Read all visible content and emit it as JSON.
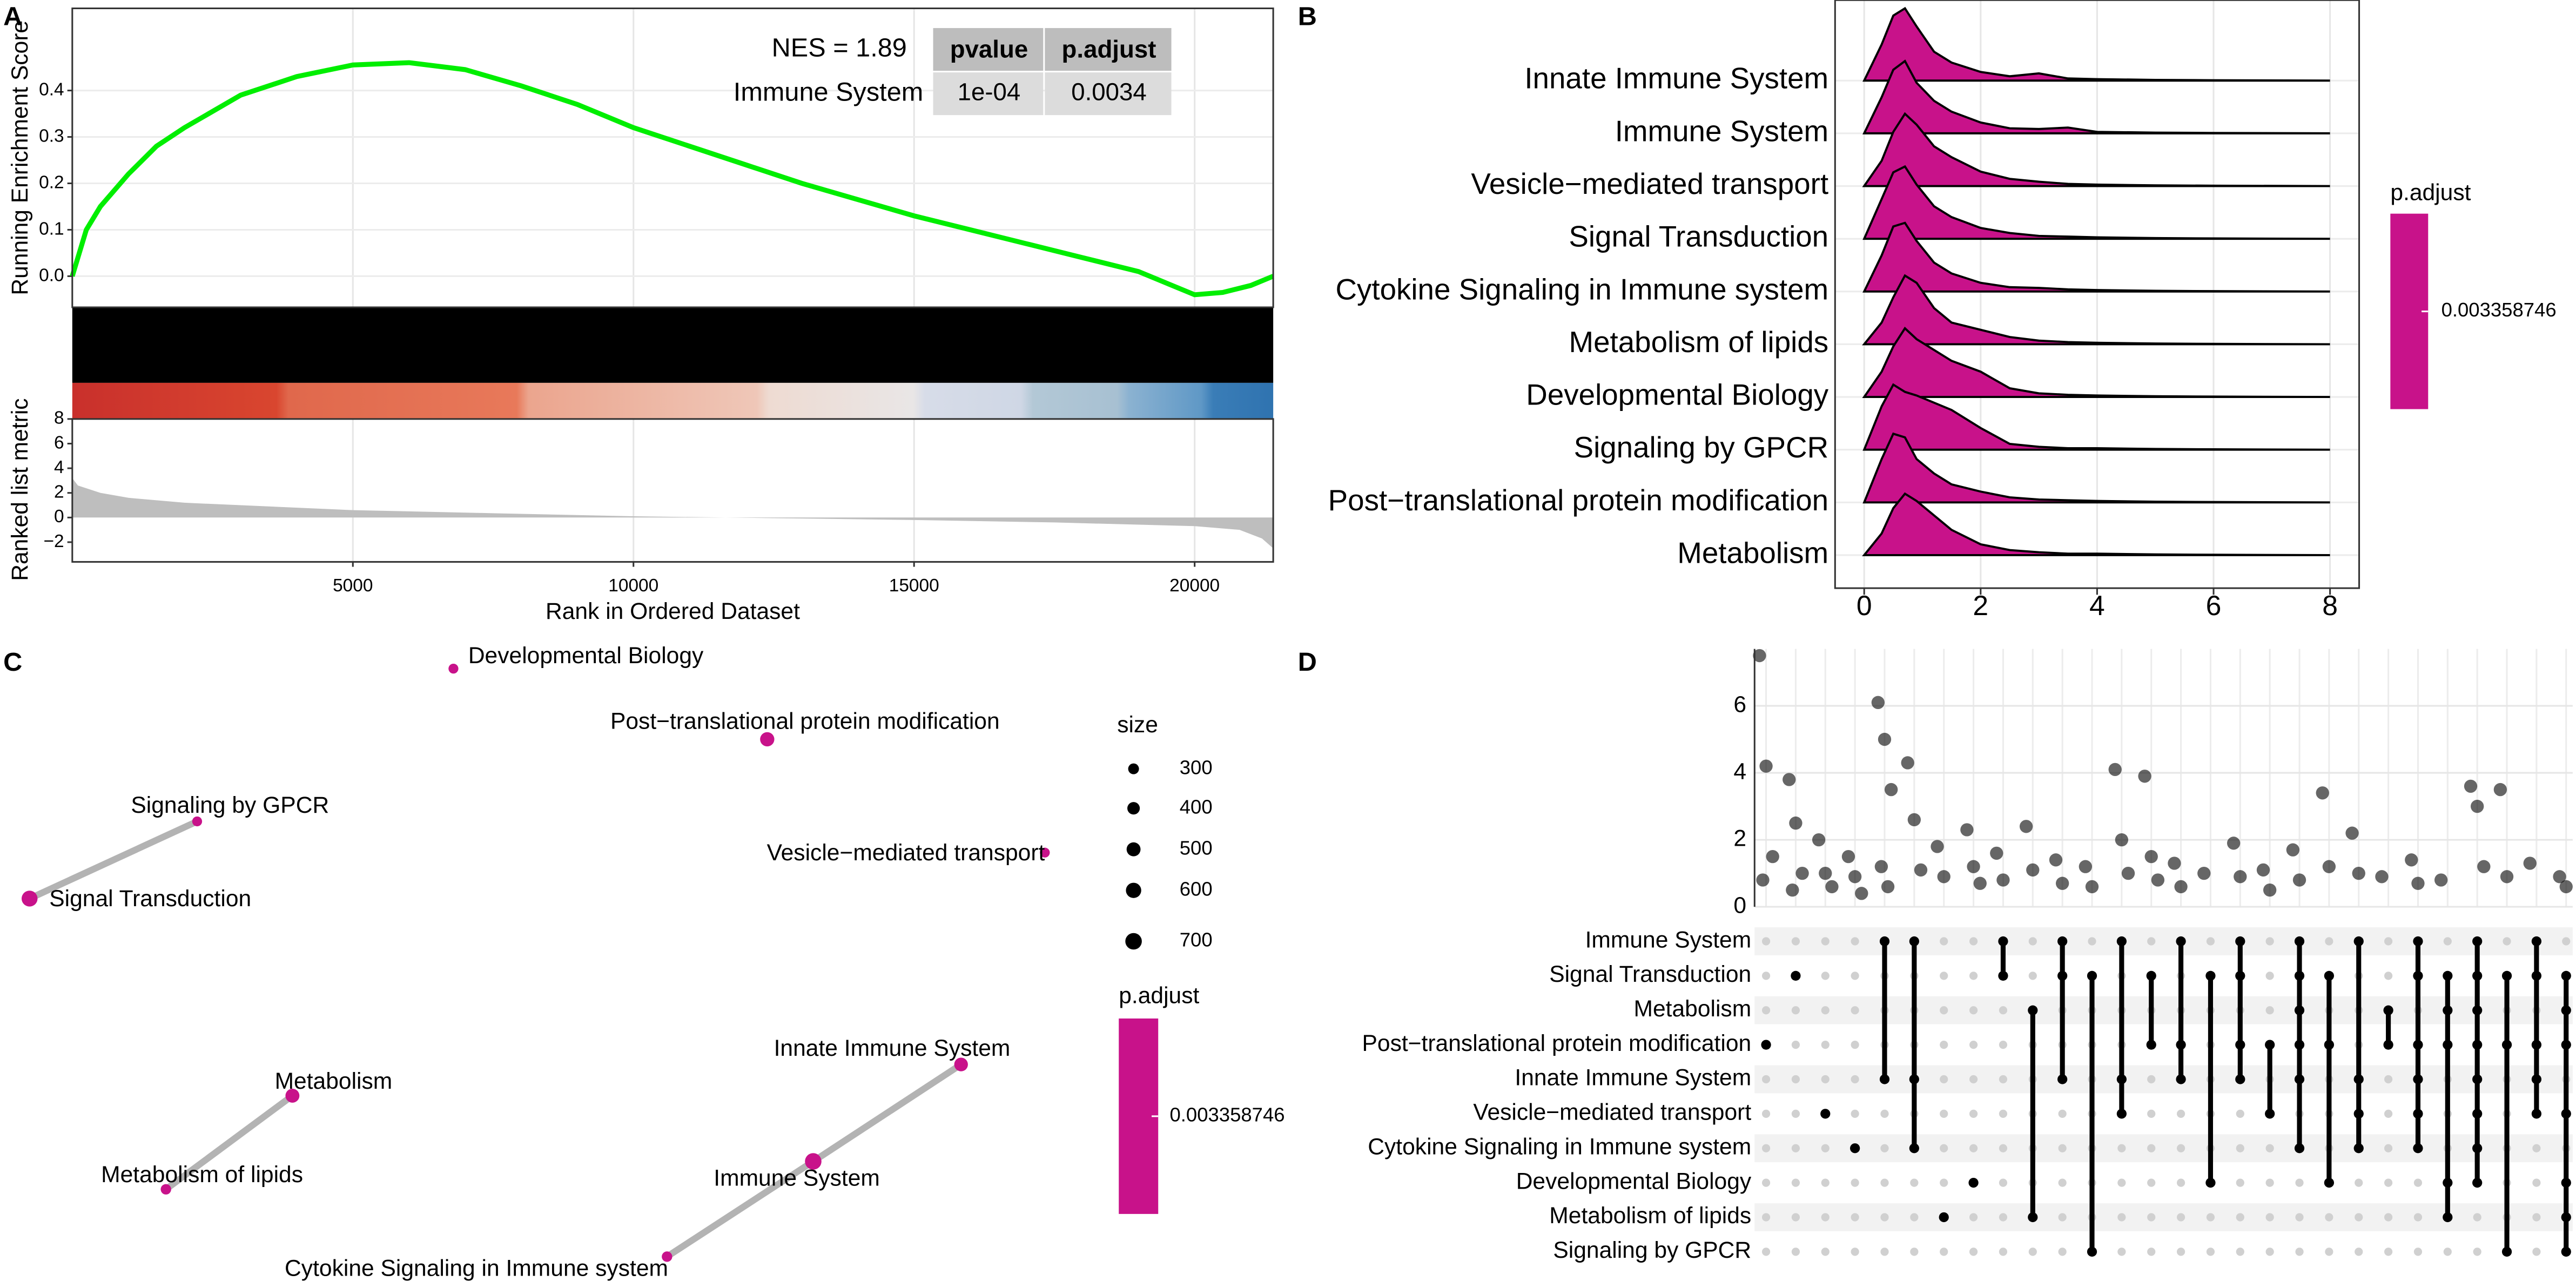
{
  "chart_data": [
    {
      "type": "gsea",
      "panel": "A",
      "ylabel": "Running Enrichment Score",
      "xlabel": "Rank in Ordered Dataset",
      "x": [
        0,
        250,
        500,
        1000,
        1500,
        2000,
        3000,
        4000,
        5000,
        6000,
        7000,
        8000,
        9000,
        10000,
        11000,
        12000,
        13000,
        14000,
        15000,
        16000,
        17000,
        18000,
        19000,
        20000,
        20500,
        21000,
        21400
      ],
      "series": [
        {
          "name": "Immune System",
          "color": "#00ee00",
          "values": [
            0,
            0.1,
            0.15,
            0.22,
            0.28,
            0.32,
            0.39,
            0.43,
            0.455,
            0.46,
            0.445,
            0.41,
            0.37,
            0.32,
            0.28,
            0.24,
            0.2,
            0.165,
            0.13,
            0.1,
            0.07,
            0.04,
            0.01,
            -0.04,
            -0.035,
            -0.02,
            0
          ]
        }
      ],
      "xlim": [
        0,
        21400
      ],
      "xticks": [
        5000,
        10000,
        15000,
        20000
      ],
      "ylim": [
        -0.067,
        0.577
      ],
      "yticks": [
        {
          "value": 0,
          "label": "0.0"
        },
        0.1,
        0.2,
        0.3,
        0.4
      ],
      "grid": true,
      "annotation": "NES = 1.89",
      "table": {
        "columns": [
          "pvalue",
          "p.adjust"
        ],
        "rows": [
          [
            "1e-04",
            "0.0034"
          ]
        ]
      },
      "metric": {
        "ylabel": "Ranked list metric",
        "color": "#bebebe",
        "x": [
          0,
          100,
          500,
          1000,
          2000,
          3500,
          5000,
          7500,
          10000,
          12500,
          15000,
          17500,
          20000,
          20800,
          21200,
          21400
        ],
        "values": [
          3.2,
          2.6,
          2.0,
          1.6,
          1.2,
          0.9,
          0.6,
          0.35,
          0.1,
          -0.05,
          -0.2,
          -0.4,
          -0.7,
          -1.0,
          -1.7,
          -2.5
        ],
        "ylim": [
          -3.6,
          8
        ],
        "yticks": [
          {
            "value": -2,
            "label": "−2"
          },
          0,
          2,
          4,
          6,
          8
        ]
      }
    },
    {
      "type": "ridge",
      "panel": "B",
      "color": "#c8128a",
      "categories": [
        "Innate Immune System",
        "Immune System",
        "Vesicle−mediated transport",
        "Signal Transduction",
        "Cytokine Signaling in Immune system",
        "Metabolism of lipids",
        "Developmental Biology",
        "Signaling by GPCR",
        "Post−translational protein modification",
        "Metabolism"
      ],
      "x": [
        0,
        0.3,
        0.5,
        0.7,
        0.9,
        1.2,
        1.5,
        2,
        2.5,
        3,
        3.5,
        4,
        5,
        6,
        8
      ],
      "densities": [
        [
          0,
          0.5,
          0.9,
          1.0,
          0.75,
          0.4,
          0.25,
          0.12,
          0.06,
          0.1,
          0.03,
          0.02,
          0.01,
          0.005,
          0
        ],
        [
          0,
          0.5,
          0.88,
          1.0,
          0.7,
          0.45,
          0.3,
          0.15,
          0.07,
          0.06,
          0.08,
          0.02,
          0.01,
          0.005,
          0
        ],
        [
          0,
          0.35,
          0.75,
          1.0,
          0.85,
          0.55,
          0.4,
          0.2,
          0.1,
          0.06,
          0.03,
          0.02,
          0.01,
          0.005,
          0
        ],
        [
          0,
          0.55,
          0.92,
          1.0,
          0.75,
          0.45,
          0.3,
          0.15,
          0.08,
          0.04,
          0.03,
          0.02,
          0.01,
          0.005,
          0
        ],
        [
          0,
          0.5,
          0.9,
          0.95,
          0.7,
          0.4,
          0.25,
          0.12,
          0.06,
          0.05,
          0.03,
          0.02,
          0.01,
          0.005,
          0
        ],
        [
          0,
          0.3,
          0.65,
          0.95,
          0.85,
          0.5,
          0.3,
          0.2,
          0.1,
          0.05,
          0.03,
          0.02,
          0.01,
          0.005,
          0
        ],
        [
          0,
          0.35,
          0.7,
          0.95,
          0.8,
          0.65,
          0.5,
          0.35,
          0.12,
          0.05,
          0.03,
          0.02,
          0.01,
          0.005,
          0
        ],
        [
          0,
          0.6,
          0.9,
          0.8,
          0.75,
          0.65,
          0.55,
          0.3,
          0.08,
          0.04,
          0.02,
          0.02,
          0.01,
          0.005,
          0
        ],
        [
          0,
          0.6,
          0.95,
          0.9,
          0.6,
          0.4,
          0.25,
          0.15,
          0.07,
          0.04,
          0.03,
          0.02,
          0.01,
          0.005,
          0
        ],
        [
          0,
          0.3,
          0.65,
          0.85,
          0.75,
          0.55,
          0.35,
          0.15,
          0.07,
          0.04,
          0.02,
          0.02,
          0.01,
          0.005,
          0
        ]
      ],
      "xlim": [
        -0.5,
        8.5
      ],
      "xticks": [
        0,
        2,
        4,
        6,
        8
      ],
      "colorbar": {
        "title": "p.adjust",
        "ticks": [
          0.003358746
        ]
      }
    },
    {
      "type": "network",
      "panel": "C",
      "color": "#c8128a",
      "nodes": [
        {
          "label": "Developmental Biology",
          "size": 250
        },
        {
          "label": "Post−translational protein modification",
          "size": 520
        },
        {
          "label": "Signaling by GPCR",
          "size": 250
        },
        {
          "label": "Signal Transduction",
          "size": 650
        },
        {
          "label": "Vesicle−mediated transport",
          "size": 250
        },
        {
          "label": "Metabolism",
          "size": 500
        },
        {
          "label": "Metabolism of lipids",
          "size": 280
        },
        {
          "label": "Innate Immune System",
          "size": 480
        },
        {
          "label": "Immune System",
          "size": 700
        },
        {
          "label": "Cytokine Signaling in Immune system",
          "size": 280
        }
      ],
      "edges": [
        [
          3,
          2
        ],
        [
          5,
          6
        ],
        [
          7,
          8
        ],
        [
          8,
          9
        ]
      ],
      "size_legend": {
        "title": "size",
        "values": [
          300,
          400,
          500,
          600,
          700
        ]
      },
      "colorbar": {
        "title": "p.adjust",
        "ticks": [
          0.003358746
        ]
      }
    },
    {
      "type": "upset",
      "panel": "D",
      "sets": [
        "Immune System",
        "Signal Transduction",
        "Metabolism",
        "Post−translational protein modification",
        "Innate Immune System",
        "Vesicle−mediated transport",
        "Cytokine Signaling in Immune system",
        "Developmental Biology",
        "Metabolism of lipids",
        "Signaling by GPCR"
      ],
      "intersections": [
        {
          "sets": [
            3
          ],
          "values": [
            7.5,
            4.2,
            1.5,
            0.8
          ]
        },
        {
          "sets": [
            1
          ],
          "values": [
            3.8,
            2.5,
            1.0,
            0.5
          ]
        },
        {
          "sets": [
            5
          ],
          "values": [
            2,
            1,
            0.6
          ]
        },
        {
          "sets": [
            6
          ],
          "values": [
            1.5,
            0.9,
            0.4
          ]
        },
        {
          "sets": [
            0,
            4
          ],
          "values": [
            6.1,
            5,
            3.5,
            1.2,
            0.6
          ]
        },
        {
          "sets": [
            0,
            4,
            6
          ],
          "values": [
            4.3,
            2.6,
            1.1
          ]
        },
        {
          "sets": [
            8
          ],
          "values": [
            1.8,
            0.9
          ]
        },
        {
          "sets": [
            7
          ],
          "values": [
            2.3,
            1.2,
            0.7
          ]
        },
        {
          "sets": [
            0,
            1
          ],
          "values": [
            1.6,
            0.8
          ]
        },
        {
          "sets": [
            2,
            8
          ],
          "values": [
            2.4,
            1.1
          ]
        },
        {
          "sets": [
            0,
            1,
            4
          ],
          "values": [
            1.4,
            0.7
          ]
        },
        {
          "sets": [
            1,
            9
          ],
          "values": [
            1.2,
            0.6
          ]
        },
        {
          "sets": [
            0,
            4,
            5
          ],
          "values": [
            4.1,
            2,
            1
          ]
        },
        {
          "sets": [
            1,
            3
          ],
          "values": [
            3.9,
            1.5,
            0.8
          ]
        },
        {
          "sets": [
            0,
            3,
            4
          ],
          "values": [
            1.3,
            0.6
          ]
        },
        {
          "sets": [
            1,
            7
          ],
          "values": [
            1.0
          ]
        },
        {
          "sets": [
            0,
            1,
            3,
            4
          ],
          "values": [
            1.9,
            0.9
          ]
        },
        {
          "sets": [
            3,
            5
          ],
          "values": [
            1.1,
            0.5
          ]
        },
        {
          "sets": [
            0,
            1,
            2,
            3,
            4,
            6
          ],
          "values": [
            1.7,
            0.8
          ]
        },
        {
          "sets": [
            1,
            3,
            7
          ],
          "values": [
            3.4,
            1.2
          ]
        },
        {
          "sets": [
            0,
            4,
            5,
            6
          ],
          "values": [
            2.2,
            1.0
          ]
        },
        {
          "sets": [
            2,
            3
          ],
          "values": [
            0.9
          ]
        },
        {
          "sets": [
            0,
            1,
            3,
            4,
            5,
            6
          ],
          "values": [
            1.4,
            0.7
          ]
        },
        {
          "sets": [
            1,
            2,
            3,
            7,
            8
          ],
          "values": [
            0.8
          ]
        },
        {
          "sets": [
            0,
            1,
            2,
            3,
            4,
            5,
            6,
            7
          ],
          "values": [
            3.6,
            3.0,
            1.2
          ]
        },
        {
          "sets": [
            1,
            3,
            9
          ],
          "values": [
            3.5,
            0.9
          ]
        },
        {
          "sets": [
            0,
            1,
            3,
            4,
            5
          ],
          "values": [
            1.3
          ]
        },
        {
          "sets": [
            1,
            2,
            3,
            5,
            7,
            8,
            9
          ],
          "values": [
            0.9,
            0.6
          ]
        }
      ],
      "ylim": [
        0,
        7.7
      ],
      "yticks": [
        0,
        2,
        4,
        6
      ]
    }
  ]
}
